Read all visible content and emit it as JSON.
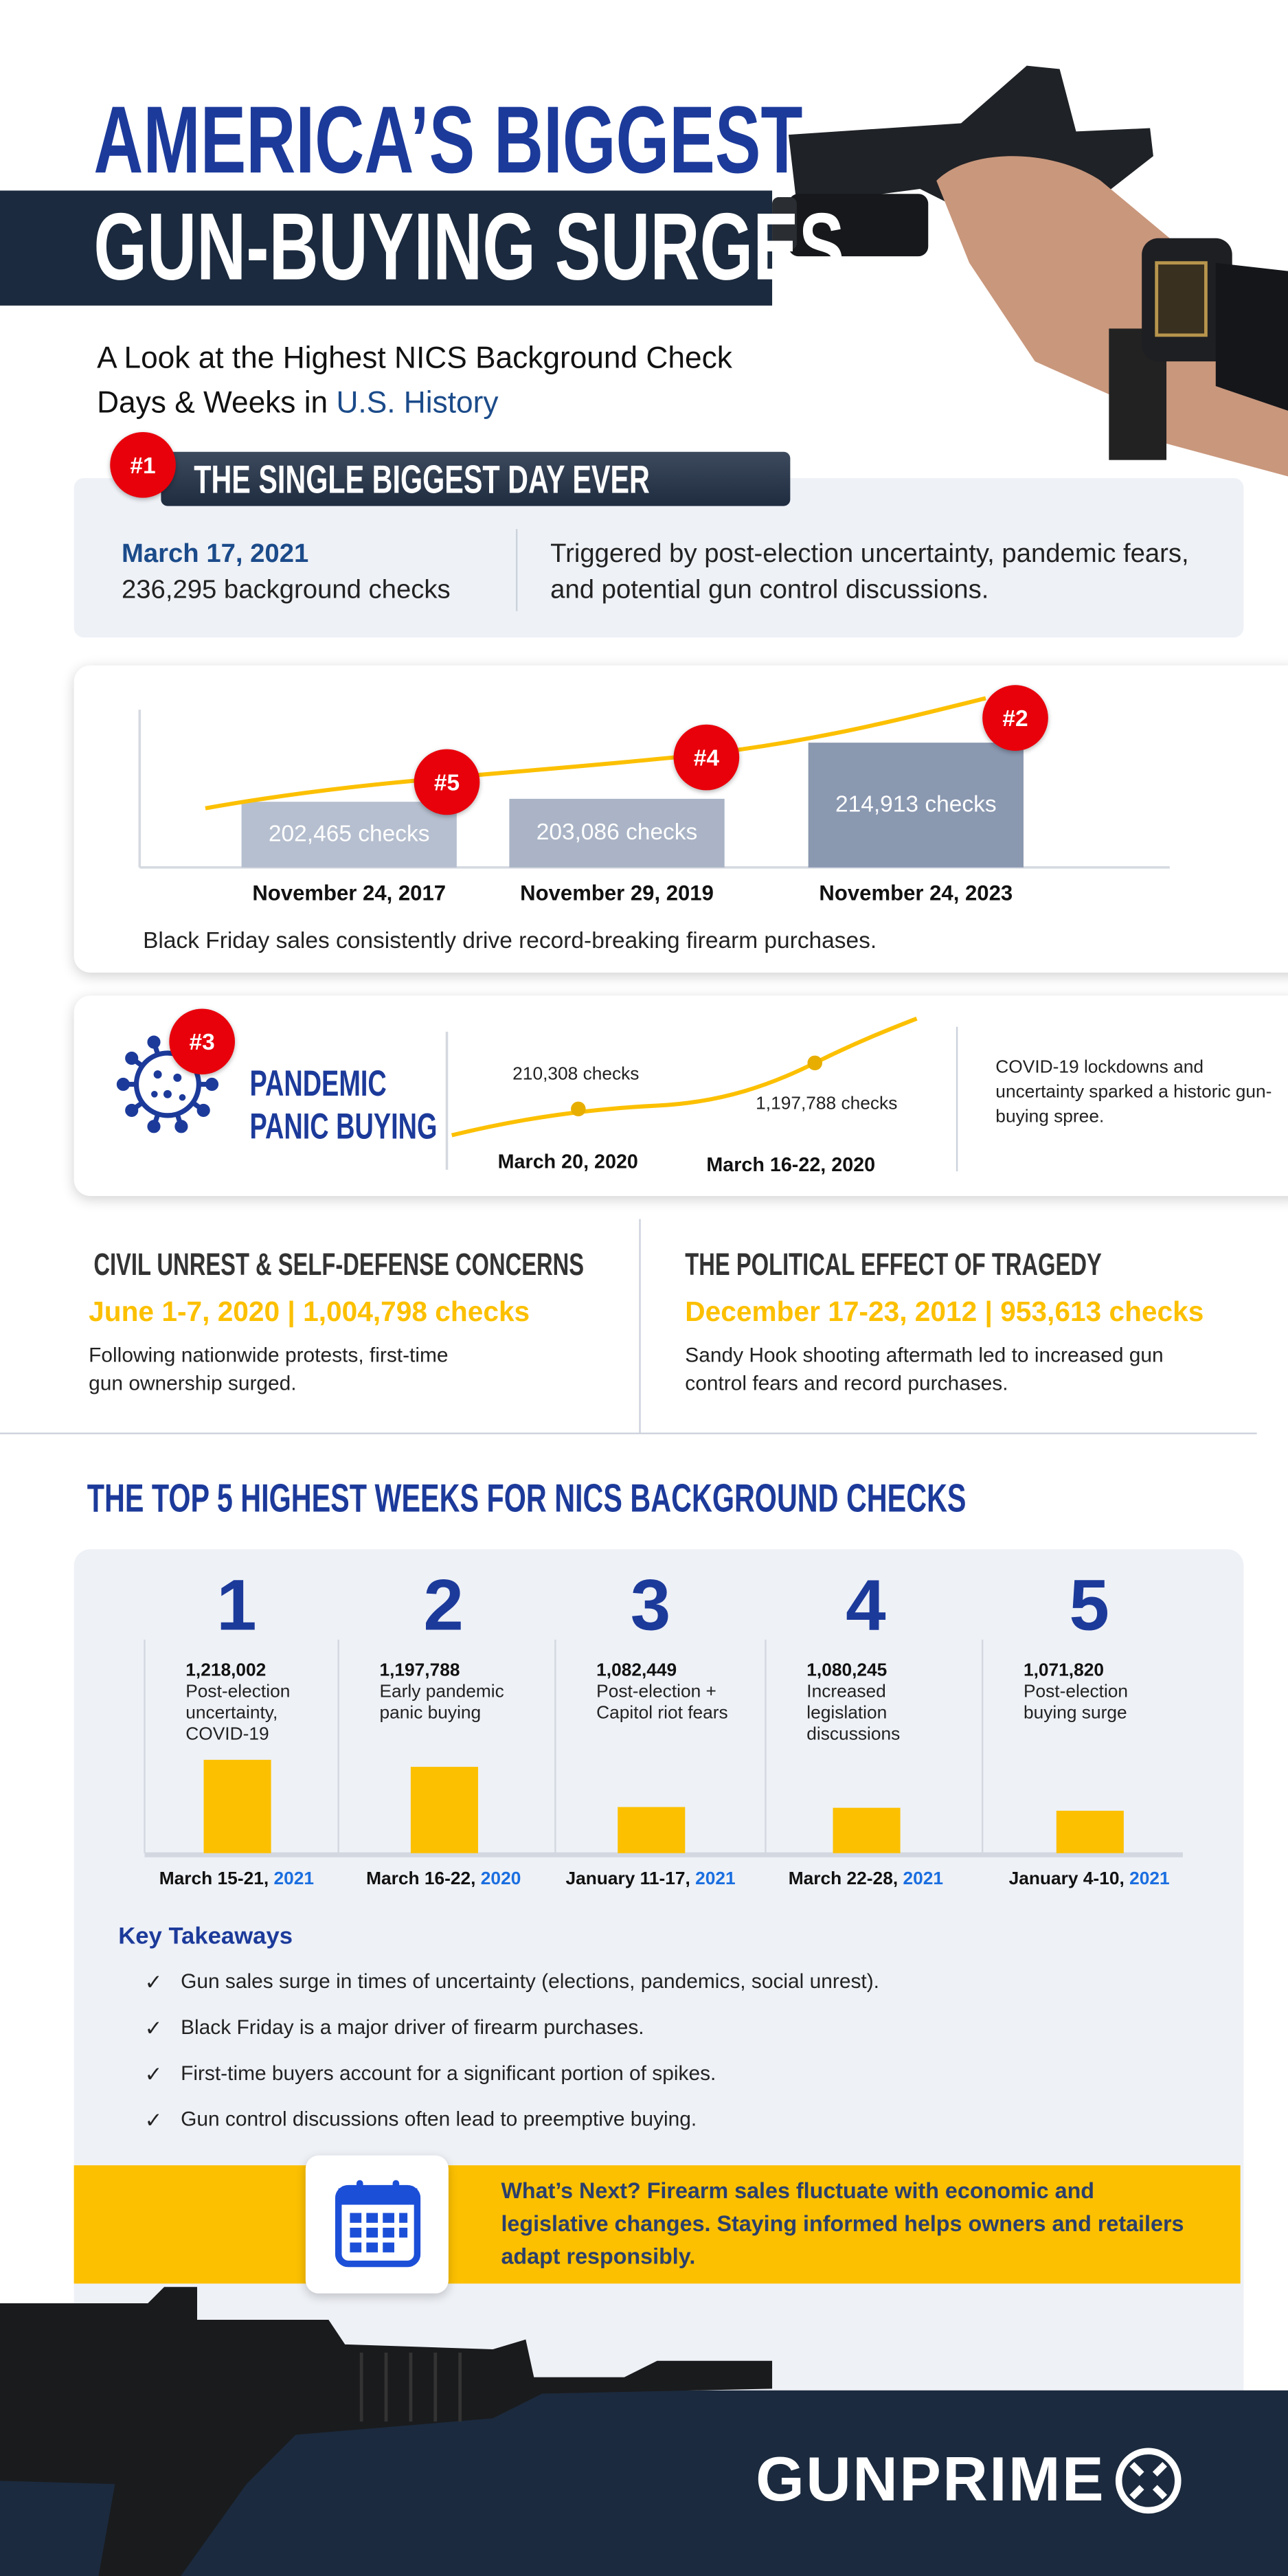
{
  "header": {
    "title_line1": "AMERICA’S BIGGEST",
    "title_line2": "GUN-BUYING SURGES",
    "subtitle_line1": "A Look at the Highest NICS Background Check",
    "subtitle_line2_plain": "Days & Weeks in ",
    "subtitle_line2_highlight": "U.S. History"
  },
  "biggest_day": {
    "rank": "#1",
    "heading": "THE SINGLE BIGGEST DAY EVER",
    "date": "March 17, 2021",
    "checks": "236,295 background checks",
    "description": "Triggered by post-election uncertainty, pandemic fears, and potential gun control discussions."
  },
  "black_friday": {
    "caption": "Black Friday sales consistently drive record-breaking firearm purchases.",
    "items": [
      {
        "rank": "#5",
        "date": "November 24, 2017",
        "label": "202,465  checks",
        "value": 202465
      },
      {
        "rank": "#4",
        "date": "November 29, 2019",
        "label": "203,086 checks",
        "value": 203086
      },
      {
        "rank": "#2",
        "date": "November 24, 2023",
        "label": "214,913 checks",
        "value": 214913
      }
    ]
  },
  "pandemic": {
    "rank": "#3",
    "title_line1": "PANDEMIC",
    "title_line2": "PANIC BUYING",
    "points": [
      {
        "date": "March 20, 2020",
        "label": "210,308 checks"
      },
      {
        "date": "March 16-22, 2020",
        "label": "1,197,788 checks"
      }
    ],
    "description": "COVID-19 lockdowns and uncertainty sparked a historic gun-buying spree."
  },
  "civil_unrest": {
    "heading": "CIVIL UNREST & SELF-DEFENSE CONCERNS",
    "stat": "June 1-7, 2020 | 1,004,798 checks",
    "body": "Following nationwide protests, first-time gun ownership surged."
  },
  "tragedy": {
    "heading": "THE POLITICAL EFFECT OF TRAGEDY",
    "stat": "December 17-23, 2012 | 953,613 checks",
    "body": "Sandy Hook shooting aftermath led to increased gun control fears and record purchases."
  },
  "top5": {
    "heading": "THE TOP 5 HIGHEST WEEKS FOR NICS BACKGROUND CHECKS"
  },
  "chart_data": {
    "type": "bar",
    "title": "THE TOP 5 HIGHEST WEEKS FOR NICS BACKGROUND CHECKS",
    "categories": [
      "March 15-21, 2021",
      "March 16-22, 2020",
      "January 11-17, 2021",
      "March 22-28, 2021",
      "January 4-10, 2021"
    ],
    "ranks": [
      "1",
      "2",
      "3",
      "4",
      "5"
    ],
    "values": [
      1218002,
      1197788,
      1082449,
      1080245,
      1071820
    ],
    "value_labels": [
      "1,218,002",
      "1,197,788",
      "1,082,449",
      "1,080,245",
      "1,071,820"
    ],
    "descriptions": [
      "Post-election uncertainty, COVID-19",
      "Early pandemic panic buying",
      "Post-election + Capitol riot fears",
      "Increased legislation discussions",
      "Post-election buying surge"
    ],
    "date_parts": [
      {
        "range": "March 15-21, ",
        "year": "2021"
      },
      {
        "range": "March 16-22, ",
        "year": "2020"
      },
      {
        "range": "January 11-17, ",
        "year": "2021"
      },
      {
        "range": "March 22-28, ",
        "year": "2021"
      },
      {
        "range": "January 4-10, ",
        "year": "2021"
      }
    ],
    "bar_color": "#fcc000",
    "grid": false
  },
  "takeaways": {
    "heading": "Key Takeaways",
    "items": [
      "Gun sales surge in times of uncertainty (elections, pandemics, social unrest).",
      "Black Friday is a major driver of firearm purchases.",
      "First-time buyers account for a significant portion of spikes.",
      "Gun control discussions often lead to preemptive buying."
    ]
  },
  "whats_next": {
    "text": "What’s Next? Firearm sales fluctuate with economic and legislative changes. Staying informed helps owners and retailers adapt responsibly.",
    "icon": "calendar-icon"
  },
  "footer": {
    "brand": "GUNPRIME"
  },
  "colors": {
    "navy": "#1c3a9a",
    "dark": "#1b2a3e",
    "red": "#e8000b",
    "yellow": "#fcc000",
    "panel": "#eef1f6",
    "link_blue": "#1a6ee0"
  }
}
